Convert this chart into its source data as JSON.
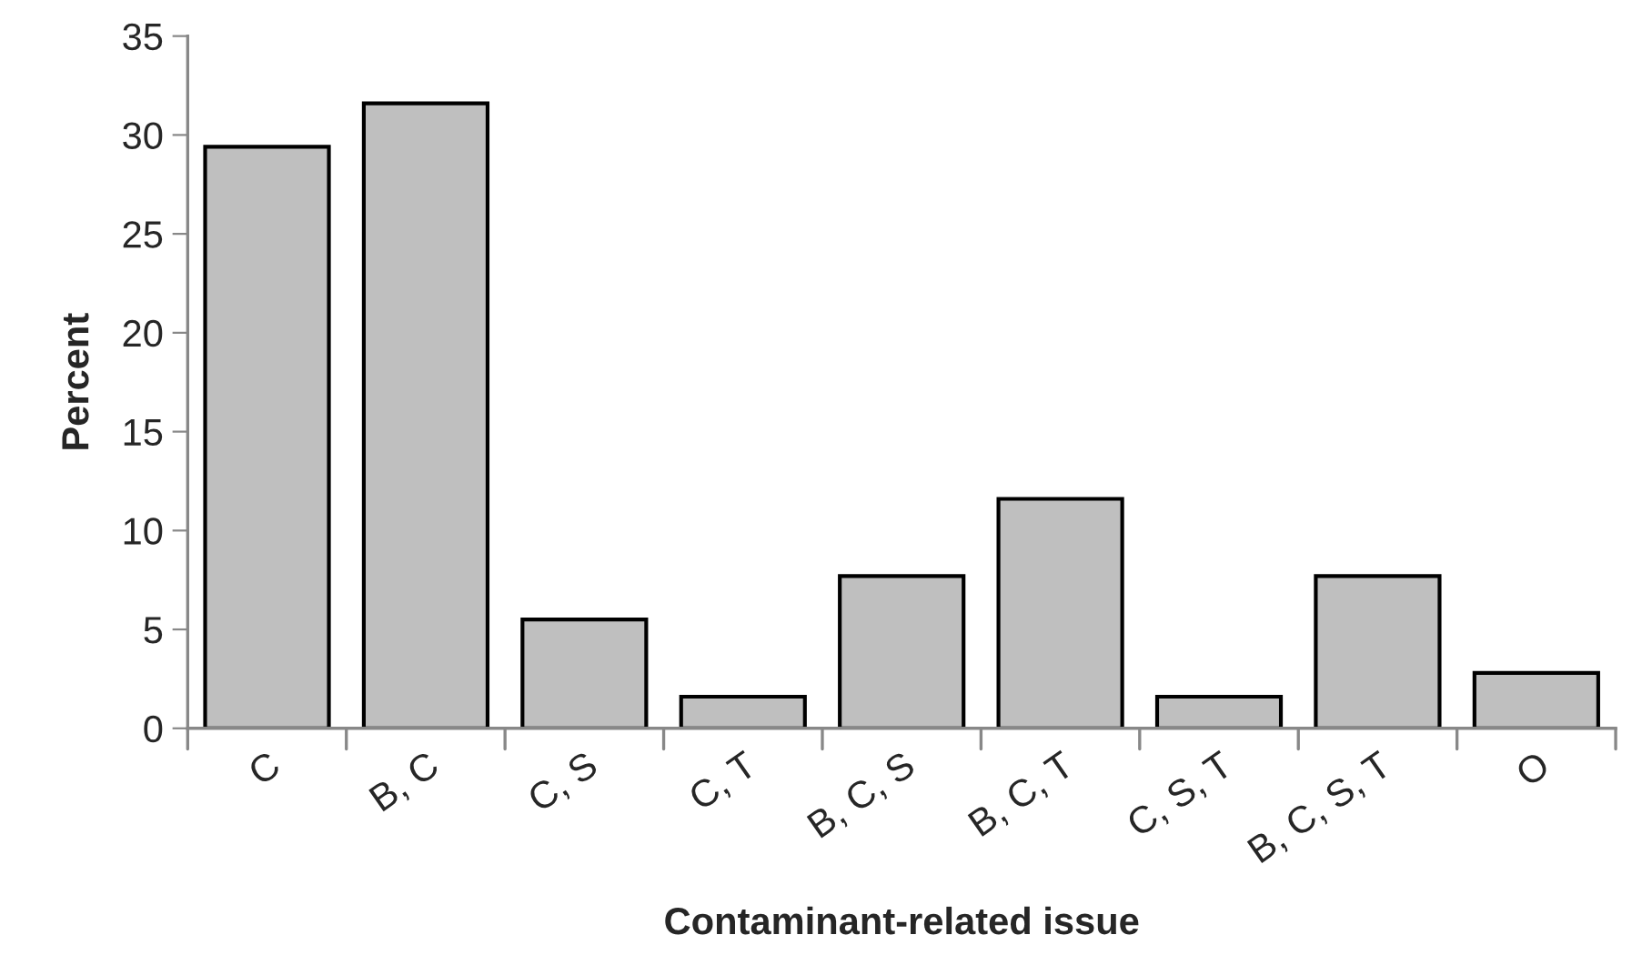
{
  "chart_data": {
    "type": "bar",
    "xlabel": "Contaminant-related issue",
    "ylabel": "Percent",
    "categories": [
      "C",
      "B, C",
      "C, S",
      "C, T",
      "B, C, S",
      "B, C, T",
      "C, S, T",
      "B, C, S, T",
      "O"
    ],
    "values": [
      29.4,
      31.6,
      5.5,
      1.6,
      7.7,
      11.6,
      1.6,
      7.7,
      2.8
    ],
    "color": "#bfbfbf",
    "ylim": [
      0,
      35
    ],
    "yticks": [
      0,
      5,
      10,
      15,
      20,
      25,
      30,
      35
    ],
    "grid": false
  }
}
